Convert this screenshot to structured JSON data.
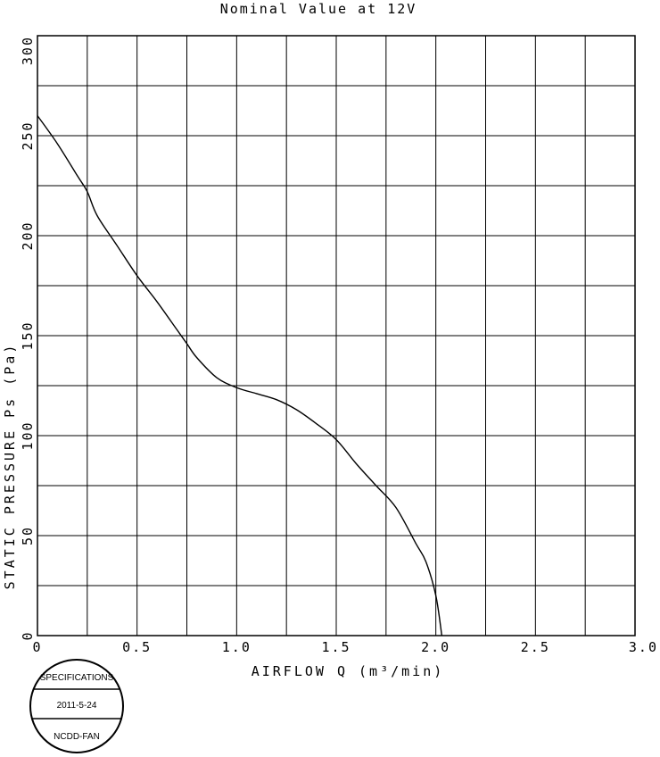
{
  "chart_data": {
    "type": "line",
    "title": "Nominal Value at 12V",
    "xlabel": "AIRFLOW Q (m³/min)",
    "ylabel": "STATIC PRESSURE Ps (Pa)",
    "xlim": [
      0,
      3.0
    ],
    "ylim": [
      0,
      300
    ],
    "grid": true,
    "x_major_ticks": [
      0,
      0.5,
      1.0,
      1.5,
      2.0,
      2.5,
      3.0
    ],
    "x_tick_labels": [
      "0",
      "0.5",
      "1.0",
      "1.5",
      "2.0",
      "2.5",
      "3.0"
    ],
    "y_major_ticks": [
      0,
      50,
      100,
      150,
      200,
      250,
      300
    ],
    "y_tick_labels": [
      "0",
      "50",
      "100",
      "150",
      "200",
      "250",
      "300"
    ],
    "x_grid_step": 0.25,
    "y_grid_step": 25,
    "series": [
      {
        "x": [
          0,
          0.1,
          0.2,
          0.25,
          0.3,
          0.4,
          0.5,
          0.6,
          0.7,
          0.75,
          0.8,
          0.9,
          1.0,
          1.1,
          1.2,
          1.3,
          1.4,
          1.5,
          1.6,
          1.7,
          1.8,
          1.9,
          1.95,
          2.0,
          2.03
        ],
        "y": [
          260,
          246,
          230,
          222,
          210,
          195,
          180,
          167,
          153,
          146,
          139,
          129,
          124,
          121,
          118,
          113,
          106,
          98,
          86,
          75,
          64,
          46,
          37,
          20,
          0
        ]
      }
    ]
  },
  "stamp": {
    "top": "SPECIFICATIONS",
    "middle": "2011-5-24",
    "bottom": "NCDD-FAN"
  }
}
